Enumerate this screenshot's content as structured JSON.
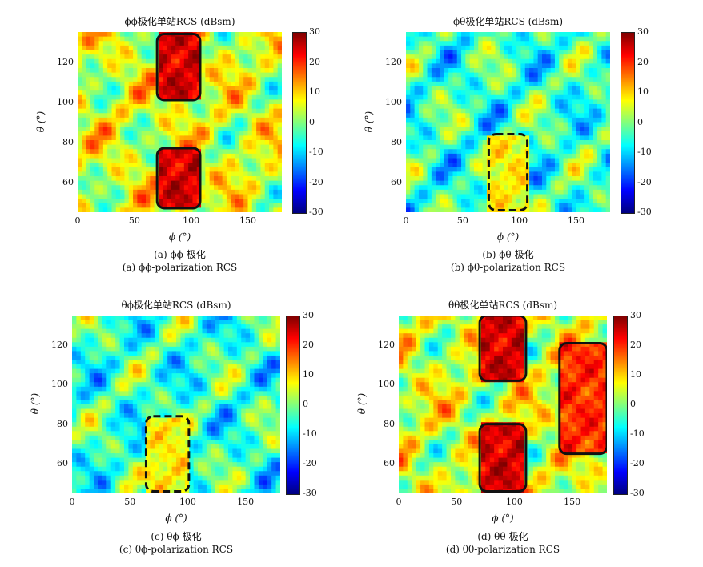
{
  "colorbar_ticks": [
    "30",
    "20",
    "10",
    "0",
    "-10",
    "-20",
    "-30"
  ],
  "colormap": [
    "#00007f",
    "#0000ff",
    "#007fff",
    "#00ffff",
    "#7fff7f",
    "#ffff00",
    "#ff7f00",
    "#ff0000",
    "#7f0000"
  ],
  "x_ticks": [
    "0",
    "50",
    "100",
    "150"
  ],
  "y_ticks": [
    "120",
    "100",
    "80",
    "60"
  ],
  "xlabel": "ϕ (°)",
  "ylabel": "θ (°)",
  "panels": [
    {
      "title": "ϕϕ极化单站RCS (dBsm)",
      "caption_cn": "(a) ϕϕ-极化",
      "caption_en": "(a) ϕϕ-polarization RCS"
    },
    {
      "title": "ϕθ极化单站RCS (dBsm)",
      "caption_cn": "(b) ϕθ-极化",
      "caption_en": "(b) ϕθ-polarization RCS"
    },
    {
      "title": "θϕ极化单站RCS (dBsm)",
      "caption_cn": "(c) θϕ-极化",
      "caption_en": "(c) θϕ-polarization RCS"
    },
    {
      "title": "θθ极化单站RCS (dBsm)",
      "caption_cn": "(d) θθ-极化",
      "caption_en": "(d) θθ-polarization RCS"
    }
  ],
  "chart_data": [
    {
      "type": "heatmap",
      "title": "ϕϕ极化单站RCS (dBsm)",
      "xlabel": "ϕ (°)",
      "ylabel": "θ (°)",
      "xlim": [
        0,
        180
      ],
      "ylim": [
        45,
        135
      ],
      "clim": [
        -30,
        30
      ],
      "colorbar_label": "dBsm",
      "mean_level_dBsm": 5,
      "highlight_regions": [
        {
          "style": "solid",
          "phi": [
            70,
            108
          ],
          "theta": [
            101,
            134
          ],
          "level_dBsm": 25
        },
        {
          "style": "solid",
          "phi": [
            70,
            108
          ],
          "theta": [
            47,
            77
          ],
          "level_dBsm": 25
        }
      ]
    },
    {
      "type": "heatmap",
      "title": "ϕθ极化单站RCS (dBsm)",
      "xlabel": "ϕ (°)",
      "ylabel": "θ (°)",
      "xlim": [
        0,
        180
      ],
      "ylim": [
        45,
        135
      ],
      "clim": [
        -30,
        30
      ],
      "colorbar_label": "dBsm",
      "mean_level_dBsm": -4,
      "highlight_regions": [
        {
          "style": "dashed",
          "phi": [
            73,
            107
          ],
          "theta": [
            46,
            84
          ],
          "level_dBsm": 8
        }
      ]
    },
    {
      "type": "heatmap",
      "title": "θϕ极化单站RCS (dBsm)",
      "xlabel": "ϕ (°)",
      "ylabel": "θ (°)",
      "xlim": [
        0,
        180
      ],
      "ylim": [
        45,
        135
      ],
      "clim": [
        -30,
        30
      ],
      "colorbar_label": "dBsm",
      "mean_level_dBsm": -4,
      "highlight_regions": [
        {
          "style": "dashed",
          "phi": [
            64,
            101
          ],
          "theta": [
            46,
            84
          ],
          "level_dBsm": 8
        }
      ]
    },
    {
      "type": "heatmap",
      "title": "θθ极化单站RCS (dBsm)",
      "xlabel": "ϕ (°)",
      "ylabel": "θ (°)",
      "xlim": [
        0,
        180
      ],
      "ylim": [
        45,
        135
      ],
      "clim": [
        -30,
        30
      ],
      "colorbar_label": "dBsm",
      "mean_level_dBsm": 5,
      "highlight_regions": [
        {
          "style": "solid",
          "phi": [
            70,
            110
          ],
          "theta": [
            102,
            135
          ],
          "level_dBsm": 25
        },
        {
          "style": "solid",
          "phi": [
            70,
            110
          ],
          "theta": [
            46,
            80
          ],
          "level_dBsm": 25
        },
        {
          "style": "solid",
          "phi": [
            139,
            180
          ],
          "theta": [
            65,
            121
          ],
          "level_dBsm": 20
        }
      ]
    }
  ]
}
